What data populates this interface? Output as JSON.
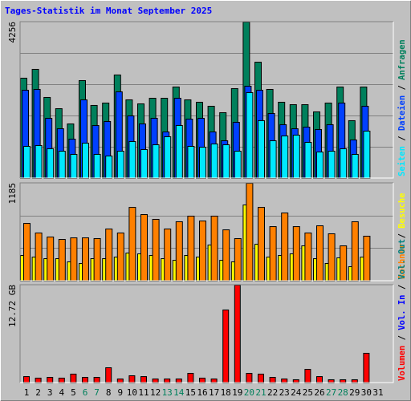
{
  "chart_data": [
    {
      "type": "bar",
      "title": "Tages-Statistik im Monat September 2025",
      "categories": [
        "1",
        "2",
        "3",
        "4",
        "5",
        "6",
        "7",
        "8",
        "9",
        "10",
        "11",
        "12",
        "13",
        "14",
        "15",
        "16",
        "17",
        "18",
        "19",
        "20",
        "21",
        "22",
        "23",
        "24",
        "25",
        "26",
        "27",
        "28",
        "29",
        "30",
        "31"
      ],
      "category_colors": [
        "#000000",
        "#000000",
        "#000000",
        "#000000",
        "#000000",
        "#00805c",
        "#00805c",
        "#000000",
        "#000000",
        "#000000",
        "#000000",
        "#000000",
        "#00805c",
        "#00805c",
        "#000000",
        "#000000",
        "#000000",
        "#000000",
        "#000000",
        "#00805c",
        "#00805c",
        "#000000",
        "#000000",
        "#000000",
        "#000000",
        "#000000",
        "#00805c",
        "#00805c",
        "#000000",
        "#000000",
        "#000000"
      ],
      "series": [
        {
          "name": "Anfragen",
          "color": "#00805c",
          "values": [
            2729,
            2969,
            2205,
            1899,
            1484,
            2663,
            1987,
            2052,
            2816,
            2139,
            2030,
            2183,
            2183,
            2489,
            2139,
            2074,
            1965,
            1790,
            2445,
            4256,
            3165,
            2423,
            2074,
            2008,
            2008,
            1812,
            2052,
            2489,
            1572,
            2489,
            null
          ]
        },
        {
          "name": "Dateien",
          "color": "#0040ff",
          "values": [
            2401,
            2423,
            1637,
            1353,
            1070,
            2139,
            1441,
            1550,
            2358,
            1703,
            1484,
            1637,
            1266,
            2183,
            1615,
            1637,
            1266,
            1026,
            1528,
            2510,
            2401,
            1768,
            1463,
            1353,
            1397,
            1332,
            1463,
            2052,
            1048,
            1965,
            null
          ]
        },
        {
          "name": "Seiten",
          "color": "#00e8ff",
          "values": [
            873,
            895,
            808,
            742,
            655,
            961,
            655,
            611,
            742,
            1004,
            786,
            917,
            1135,
            1441,
            873,
            851,
            939,
            917,
            742,
            2336,
            1572,
            1026,
            1157,
            1179,
            982,
            720,
            742,
            808,
            655,
            1288,
            null
          ]
        }
      ],
      "ylim": [
        0,
        4256
      ],
      "yticks": [
        4256
      ],
      "grid_lines": 4,
      "legend_reverse": true,
      "legend_separator": " / "
    },
    {
      "type": "bar",
      "series": [
        {
          "name": "Besuche",
          "color": "#ffff00",
          "values": [
            311,
            291,
            272,
            272,
            233,
            214,
            272,
            272,
            291,
            340,
            330,
            311,
            272,
            252,
            311,
            291,
            437,
            252,
            233,
            922,
            447,
            291,
            311,
            330,
            427,
            272,
            214,
            282,
            175,
            291,
            null
          ]
        },
        {
          "name": "Rechner",
          "color": "#ff8000",
          "values": [
            699,
            583,
            534,
            505,
            524,
            524,
            515,
            631,
            583,
            893,
            806,
            748,
            631,
            719,
            787,
            728,
            787,
            621,
            515,
            1185,
            893,
            660,
            825,
            660,
            583,
            670,
            573,
            427,
            719,
            544,
            null
          ]
        }
      ],
      "ylim": [
        0,
        1185
      ],
      "yticks": [
        1185
      ],
      "grid_lines": 2,
      "legend_reverse": true,
      "legend_separator": " / "
    },
    {
      "type": "bar",
      "series": [
        {
          "name": "Volumen",
          "color": "#ff0000",
          "values": [
            0.83,
            0.63,
            0.73,
            0.63,
            1.15,
            0.73,
            0.73,
            1.98,
            0.52,
            0.94,
            0.83,
            0.52,
            0.52,
            0.52,
            1.25,
            0.63,
            0.52,
            9.49,
            12.72,
            1.25,
            1.15,
            0.73,
            0.52,
            0.42,
            1.77,
            0.83,
            0.42,
            0.42,
            0.42,
            3.86,
            null
          ]
        }
      ],
      "legend_extra": [
        {
          "name": "Vol. In",
          "color": "#0000ff"
        },
        {
          "name": "Vol. Out",
          "color": "#008080"
        }
      ],
      "ylim": [
        0,
        12.72
      ],
      "yticks": [
        {
          "value": 12.72,
          "label": "12.72 GB"
        }
      ],
      "grid_lines": 0,
      "legend_reverse": false,
      "legend_separator": " / "
    }
  ]
}
